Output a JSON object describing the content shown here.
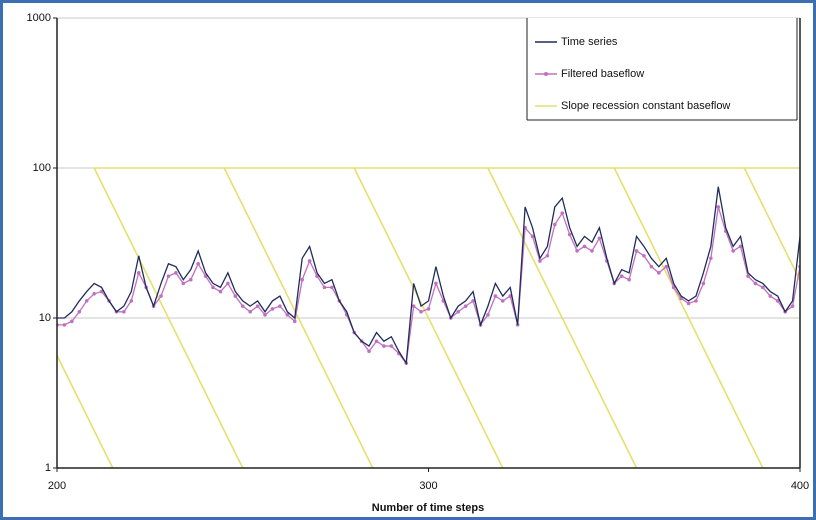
{
  "chart_data": {
    "type": "line",
    "xlabel": "Number of time steps",
    "yscale": "log",
    "xlim": [
      200,
      400
    ],
    "xticks": [
      200,
      300,
      400
    ],
    "ylim": [
      1,
      1000
    ],
    "yticks": [
      1,
      10,
      100,
      1000
    ],
    "grid": true,
    "legend": "upper right",
    "x": [
      200,
      202,
      204,
      206,
      208,
      210,
      212,
      214,
      216,
      218,
      220,
      222,
      224,
      226,
      228,
      230,
      232,
      234,
      236,
      238,
      240,
      242,
      244,
      246,
      248,
      250,
      252,
      254,
      256,
      258,
      260,
      262,
      264,
      266,
      268,
      270,
      272,
      274,
      276,
      278,
      280,
      282,
      284,
      286,
      288,
      290,
      292,
      294,
      296,
      298,
      300,
      302,
      304,
      306,
      308,
      310,
      312,
      314,
      316,
      318,
      320,
      322,
      324,
      326,
      328,
      330,
      332,
      334,
      336,
      338,
      340,
      342,
      344,
      346,
      348,
      350,
      352,
      354,
      356,
      358,
      360,
      362,
      364,
      366,
      368,
      370,
      372,
      374,
      376,
      378,
      380,
      382,
      384,
      386,
      388,
      390,
      392,
      394,
      396,
      398,
      400
    ],
    "series": [
      {
        "name": "Time series",
        "color": "#1f2d5a",
        "markers": false,
        "values": [
          10,
          10,
          11,
          13,
          15,
          17,
          16,
          13,
          11,
          12,
          15,
          26,
          16,
          12,
          17,
          23,
          22,
          18,
          21,
          28,
          20,
          17,
          16,
          20,
          15,
          13,
          12,
          13,
          11,
          13,
          14,
          11,
          10,
          25,
          30,
          20,
          17,
          18,
          13,
          11,
          8,
          7,
          6.5,
          8,
          7,
          7.5,
          6,
          5,
          17,
          12,
          13,
          22,
          14,
          10,
          12,
          13,
          15,
          9,
          12,
          17,
          14,
          16,
          9,
          55,
          40,
          25,
          30,
          55,
          63,
          40,
          30,
          35,
          32,
          40,
          25,
          17,
          21,
          20,
          35,
          30,
          25,
          22,
          25,
          17,
          14,
          13,
          14,
          20,
          30,
          75,
          40,
          30,
          35,
          20,
          18,
          17,
          15,
          14,
          11,
          13,
          35
        ]
      },
      {
        "name": "Filtered baseflow",
        "color": "#c070c0",
        "markers": true,
        "values": [
          9,
          9,
          9.5,
          11,
          13,
          14.5,
          15,
          13,
          11,
          11,
          13,
          20,
          16,
          12,
          14,
          19,
          20,
          17,
          18,
          23,
          19,
          16,
          15,
          17,
          14,
          12,
          11,
          12,
          10.5,
          11.5,
          12,
          10.5,
          9.5,
          18,
          24,
          19,
          16,
          16,
          13,
          10.5,
          8,
          7,
          6,
          7,
          6.5,
          6.5,
          5.8,
          5,
          12,
          11,
          11.5,
          17,
          13,
          10,
          11,
          12,
          13,
          9,
          10.5,
          14,
          13,
          14,
          9,
          40,
          35,
          24,
          26,
          42,
          50,
          36,
          28,
          30,
          28,
          34,
          24,
          17,
          19,
          18,
          28,
          26,
          22,
          20,
          22,
          16,
          13.5,
          12.5,
          13,
          17,
          25,
          55,
          38,
          28,
          30,
          19,
          17,
          16,
          14,
          13,
          11,
          12,
          22
        ]
      },
      {
        "name": "Slope recession constant baseflow",
        "color": "#e6df6e",
        "markers": false,
        "x": [
          200,
          215,
          null,
          210,
          250,
          null,
          245,
          285,
          null,
          280,
          320,
          null,
          316,
          356,
          null,
          350,
          390,
          null,
          385,
          400,
          null,
          210,
          400
        ],
        "values": [
          5.62,
          1,
          null,
          100,
          1,
          null,
          100,
          1,
          null,
          100,
          1,
          null,
          100,
          1,
          null,
          100,
          1,
          null,
          100,
          17.8,
          null,
          100,
          100
        ]
      }
    ]
  }
}
